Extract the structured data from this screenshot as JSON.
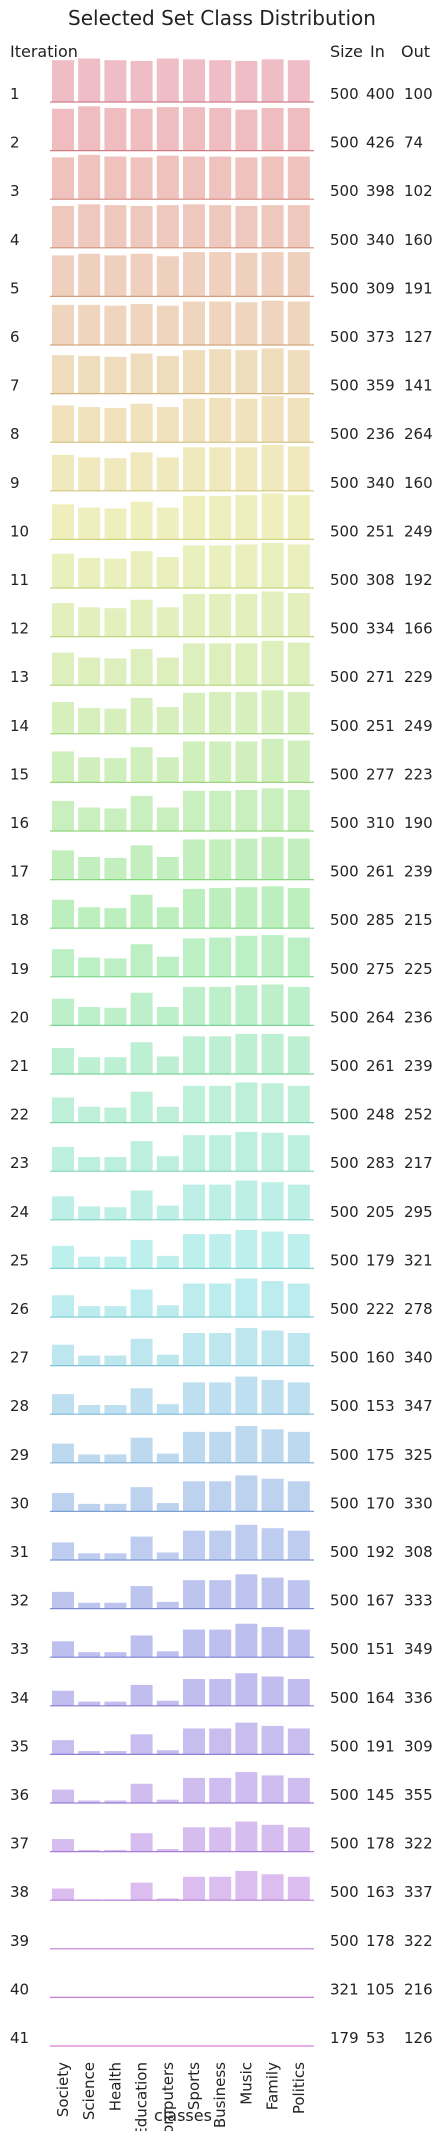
{
  "chart_data": {
    "type": "bar",
    "title": "Selected Set Class Distribution",
    "xlabel": "classes",
    "row_header": "Iteration",
    "column_headers": [
      "Size",
      "In",
      "Out"
    ],
    "categories": [
      "Society",
      "Science",
      "Health",
      "Education",
      "Computers",
      "Sports",
      "Business",
      "Music",
      "Family",
      "Politics"
    ],
    "rows": [
      {
        "iteration": "1",
        "size": 500,
        "in": 400,
        "out": 100,
        "values": [
          50,
          52,
          50,
          49,
          52,
          51,
          50,
          49,
          51,
          50
        ]
      },
      {
        "iteration": "2",
        "size": 500,
        "in": 426,
        "out": 74,
        "values": [
          50,
          53,
          51,
          50,
          52,
          52,
          51,
          49,
          51,
          51
        ]
      },
      {
        "iteration": "3",
        "size": 500,
        "in": 398,
        "out": 102,
        "values": [
          50,
          53,
          51,
          50,
          52,
          51,
          51,
          50,
          51,
          51
        ]
      },
      {
        "iteration": "4",
        "size": 500,
        "in": 340,
        "out": 160,
        "values": [
          50,
          52,
          51,
          50,
          51,
          52,
          51,
          50,
          51,
          51
        ]
      },
      {
        "iteration": "5",
        "size": 500,
        "in": 309,
        "out": 191,
        "values": [
          49,
          51,
          49,
          51,
          48,
          53,
          53,
          52,
          53,
          53
        ]
      },
      {
        "iteration": "6",
        "size": 500,
        "in": 373,
        "out": 127,
        "values": [
          48,
          48,
          47,
          49,
          47,
          52,
          52,
          51,
          53,
          52
        ]
      },
      {
        "iteration": "7",
        "size": 500,
        "in": 359,
        "out": 141,
        "values": [
          46,
          45,
          44,
          48,
          45,
          52,
          53,
          52,
          54,
          52
        ]
      },
      {
        "iteration": "8",
        "size": 500,
        "in": 236,
        "out": 264,
        "values": [
          44,
          42,
          41,
          46,
          42,
          52,
          53,
          52,
          55,
          53
        ]
      },
      {
        "iteration": "9",
        "size": 500,
        "in": 340,
        "out": 160,
        "values": [
          43,
          40,
          39,
          46,
          40,
          52,
          52,
          52,
          55,
          53
        ]
      },
      {
        "iteration": "10",
        "size": 500,
        "in": 251,
        "out": 249,
        "values": [
          42,
          38,
          37,
          45,
          38,
          52,
          52,
          53,
          55,
          53
        ]
      },
      {
        "iteration": "11",
        "size": 500,
        "in": 308,
        "out": 192,
        "values": [
          41,
          36,
          35,
          44,
          37,
          51,
          51,
          52,
          54,
          52
        ]
      },
      {
        "iteration": "12",
        "size": 500,
        "in": 334,
        "out": 166,
        "values": [
          40,
          35,
          34,
          44,
          35,
          51,
          51,
          51,
          54,
          52
        ]
      },
      {
        "iteration": "13",
        "size": 500,
        "in": 271,
        "out": 229,
        "values": [
          39,
          33,
          32,
          43,
          33,
          50,
          50,
          50,
          53,
          51
        ]
      },
      {
        "iteration": "14",
        "size": 500,
        "in": 251,
        "out": 249,
        "values": [
          38,
          31,
          30,
          43,
          32,
          49,
          50,
          50,
          52,
          50
        ]
      },
      {
        "iteration": "15",
        "size": 500,
        "in": 277,
        "out": 223,
        "values": [
          37,
          30,
          29,
          42,
          30,
          49,
          49,
          49,
          52,
          50
        ]
      },
      {
        "iteration": "16",
        "size": 500,
        "in": 310,
        "out": 190,
        "values": [
          36,
          28,
          27,
          42,
          28,
          48,
          48,
          49,
          51,
          49
        ]
      },
      {
        "iteration": "17",
        "size": 500,
        "in": 261,
        "out": 239,
        "values": [
          35,
          27,
          26,
          41,
          27,
          48,
          48,
          49,
          51,
          49
        ]
      },
      {
        "iteration": "18",
        "size": 500,
        "in": 285,
        "out": 215,
        "values": [
          34,
          25,
          24,
          40,
          25,
          47,
          48,
          49,
          50,
          48
        ]
      },
      {
        "iteration": "19",
        "size": 500,
        "in": 275,
        "out": 225,
        "values": [
          33,
          23,
          22,
          39,
          24,
          46,
          47,
          49,
          50,
          47
        ]
      },
      {
        "iteration": "20",
        "size": 500,
        "in": 264,
        "out": 236,
        "values": [
          32,
          22,
          21,
          39,
          22,
          46,
          46,
          48,
          49,
          46
        ]
      },
      {
        "iteration": "21",
        "size": 500,
        "in": 261,
        "out": 239,
        "values": [
          31,
          20,
          20,
          38,
          21,
          45,
          45,
          48,
          48,
          45
        ]
      },
      {
        "iteration": "22",
        "size": 500,
        "in": 248,
        "out": 252,
        "values": [
          30,
          19,
          18,
          37,
          19,
          44,
          44,
          48,
          47,
          44
        ]
      },
      {
        "iteration": "23",
        "size": 500,
        "in": 283,
        "out": 217,
        "values": [
          29,
          17,
          17,
          36,
          18,
          43,
          43,
          47,
          46,
          43
        ]
      },
      {
        "iteration": "24",
        "size": 500,
        "in": 205,
        "out": 295,
        "values": [
          28,
          16,
          15,
          35,
          17,
          42,
          42,
          47,
          45,
          42
        ]
      },
      {
        "iteration": "25",
        "size": 500,
        "in": 179,
        "out": 321,
        "values": [
          27,
          14,
          14,
          34,
          15,
          41,
          41,
          46,
          44,
          41
        ]
      },
      {
        "iteration": "26",
        "size": 500,
        "in": 222,
        "out": 278,
        "values": [
          26,
          13,
          13,
          33,
          14,
          40,
          40,
          46,
          43,
          40
        ]
      },
      {
        "iteration": "27",
        "size": 500,
        "in": 160,
        "out": 340,
        "values": [
          25,
          12,
          12,
          32,
          13,
          39,
          39,
          45,
          42,
          39
        ]
      },
      {
        "iteration": "28",
        "size": 500,
        "in": 153,
        "out": 347,
        "values": [
          24,
          11,
          11,
          31,
          12,
          38,
          38,
          45,
          41,
          38
        ]
      },
      {
        "iteration": "29",
        "size": 500,
        "in": 175,
        "out": 325,
        "values": [
          23,
          10,
          10,
          30,
          11,
          37,
          37,
          44,
          40,
          37
        ]
      },
      {
        "iteration": "30",
        "size": 500,
        "in": 170,
        "out": 330,
        "values": [
          22,
          9,
          9,
          29,
          10,
          36,
          36,
          43,
          39,
          36
        ]
      },
      {
        "iteration": "31",
        "size": 500,
        "in": 192,
        "out": 308,
        "values": [
          21,
          8,
          8,
          28,
          9,
          35,
          35,
          42,
          38,
          35
        ]
      },
      {
        "iteration": "32",
        "size": 500,
        "in": 167,
        "out": 333,
        "values": [
          20,
          7,
          7,
          27,
          8,
          34,
          34,
          41,
          37,
          34
        ]
      },
      {
        "iteration": "33",
        "size": 500,
        "in": 151,
        "out": 349,
        "values": [
          19,
          6,
          6,
          26,
          7,
          33,
          33,
          40,
          36,
          33
        ]
      },
      {
        "iteration": "34",
        "size": 500,
        "in": 164,
        "out": 336,
        "values": [
          18,
          5,
          5,
          25,
          6,
          32,
          32,
          39,
          35,
          32
        ]
      },
      {
        "iteration": "35",
        "size": 500,
        "in": 191,
        "out": 309,
        "values": [
          17,
          4,
          4,
          24,
          5,
          31,
          31,
          38,
          34,
          31
        ]
      },
      {
        "iteration": "36",
        "size": 500,
        "in": 145,
        "out": 355,
        "values": [
          16,
          3,
          3,
          23,
          4,
          30,
          30,
          37,
          33,
          30
        ]
      },
      {
        "iteration": "37",
        "size": 500,
        "in": 178,
        "out": 322,
        "values": [
          15,
          2,
          2,
          22,
          3,
          29,
          29,
          36,
          32,
          29
        ]
      },
      {
        "iteration": "38",
        "size": 500,
        "in": 163,
        "out": 337,
        "values": [
          14,
          1,
          1,
          21,
          2,
          28,
          28,
          35,
          31,
          28
        ]
      },
      {
        "iteration": "39",
        "size": 500,
        "in": 178,
        "out": 322,
        "values": [
          0,
          0,
          0,
          0,
          0,
          0,
          0,
          0,
          0,
          0
        ]
      },
      {
        "iteration": "40",
        "size": 321,
        "in": 105,
        "out": 216,
        "values": [
          0,
          0,
          0,
          0,
          0,
          0,
          0,
          0,
          0,
          0
        ]
      },
      {
        "iteration": "41",
        "size": 179,
        "in": 53,
        "out": 126,
        "values": [
          0,
          0,
          0,
          0,
          0,
          0,
          0,
          0,
          0,
          0
        ]
      }
    ],
    "ylim": [
      0,
      55
    ],
    "grid": false,
    "legend": "none",
    "colors": {
      "palette_start": "#f4c3cc",
      "palette_mid": "#b8ddd6",
      "palette_end": "#f0b3ec",
      "baseline": "#d9a7b4"
    }
  }
}
